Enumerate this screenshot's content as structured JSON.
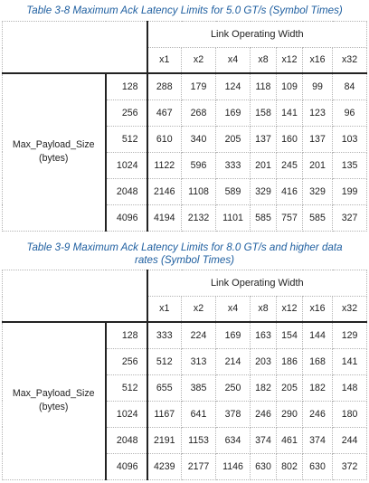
{
  "widths": [
    "x1",
    "x2",
    "x4",
    "x8",
    "x12",
    "x16",
    "x32"
  ],
  "tables": [
    {
      "caption": "Table  3-8  Maximum Ack Latency Limits for 5.0 GT/s (Symbol Times)",
      "group_header": "Link Operating Width",
      "row_label_line1": "Max_Payload_Size",
      "row_label_line2": "(bytes)",
      "rows": [
        {
          "payload": "128",
          "values": [
            "288",
            "179",
            "124",
            "118",
            "109",
            "99",
            "84"
          ]
        },
        {
          "payload": "256",
          "values": [
            "467",
            "268",
            "169",
            "158",
            "141",
            "123",
            "96"
          ]
        },
        {
          "payload": "512",
          "values": [
            "610",
            "340",
            "205",
            "137",
            "160",
            "137",
            "103"
          ]
        },
        {
          "payload": "1024",
          "values": [
            "1122",
            "596",
            "333",
            "201",
            "245",
            "201",
            "135"
          ]
        },
        {
          "payload": "2048",
          "values": [
            "2146",
            "1108",
            "589",
            "329",
            "416",
            "329",
            "199"
          ]
        },
        {
          "payload": "4096",
          "values": [
            "4194",
            "2132",
            "1101",
            "585",
            "757",
            "585",
            "327"
          ]
        }
      ]
    },
    {
      "caption_line1": "Table  3-9  Maximum Ack Latency Limits for 8.0 GT/s and higher data",
      "caption_line2": "rates (Symbol Times)",
      "group_header": "Link Operating Width",
      "row_label_line1": "Max_Payload_Size",
      "row_label_line2": "(bytes)",
      "rows": [
        {
          "payload": "128",
          "values": [
            "333",
            "224",
            "169",
            "163",
            "154",
            "144",
            "129"
          ]
        },
        {
          "payload": "256",
          "values": [
            "512",
            "313",
            "214",
            "203",
            "186",
            "168",
            "141"
          ]
        },
        {
          "payload": "512",
          "values": [
            "655",
            "385",
            "250",
            "182",
            "205",
            "182",
            "148"
          ]
        },
        {
          "payload": "1024",
          "values": [
            "1167",
            "641",
            "378",
            "246",
            "290",
            "246",
            "180"
          ]
        },
        {
          "payload": "2048",
          "values": [
            "2191",
            "1153",
            "634",
            "374",
            "461",
            "374",
            "244"
          ]
        },
        {
          "payload": "4096",
          "values": [
            "4239",
            "2177",
            "1146",
            "630",
            "802",
            "630",
            "372"
          ]
        }
      ]
    }
  ]
}
